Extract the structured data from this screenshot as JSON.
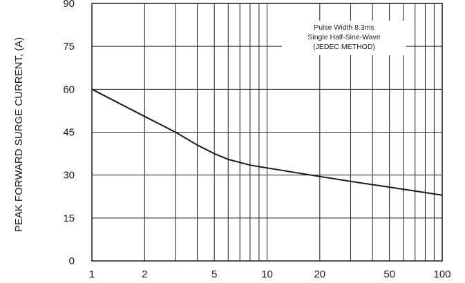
{
  "chart_data": {
    "type": "line",
    "title": "",
    "xlabel": "",
    "ylabel": "PEAK FORWARD SURGE CURRENT, (A)",
    "xscale": "log",
    "xlim": [
      1,
      100
    ],
    "ylim": [
      0,
      90
    ],
    "grid": true,
    "x_tick_labels": [
      "1",
      "2",
      "5",
      "10",
      "20",
      "50",
      "100"
    ],
    "x_tick_values": [
      1,
      2,
      5,
      10,
      20,
      50,
      100
    ],
    "y_tick_labels": [
      "0",
      "15",
      "30",
      "45",
      "60",
      "75",
      "90"
    ],
    "y_tick_values": [
      0,
      15,
      30,
      45,
      60,
      75,
      90
    ],
    "annotation": [
      "Pulse Width 8.3ms",
      "Single Half-Sine-Wave",
      "(JEDEC METHOD)"
    ],
    "series": [
      {
        "x": [
          1,
          2,
          3,
          4,
          5,
          6,
          8,
          10,
          20,
          30,
          50,
          100
        ],
        "y": [
          60,
          50.5,
          45,
          40.5,
          37.5,
          35.5,
          33.5,
          32.5,
          29.5,
          27.8,
          25.8,
          23
        ]
      }
    ]
  }
}
